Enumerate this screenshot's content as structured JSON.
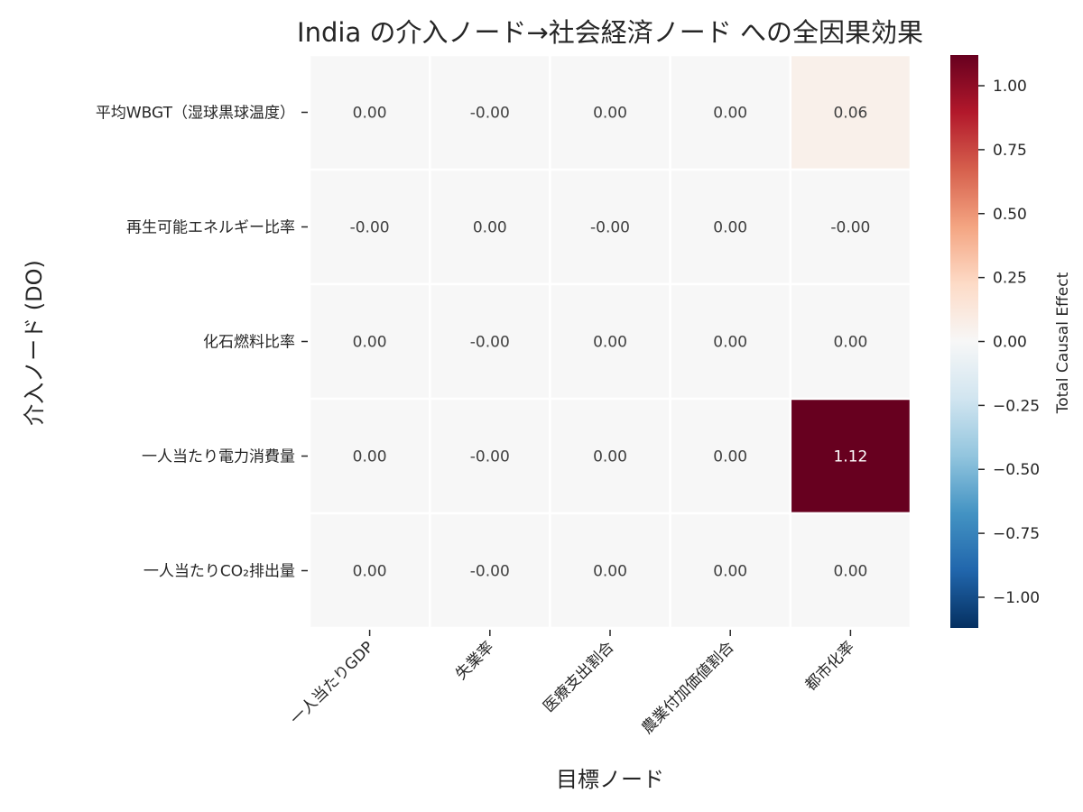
{
  "chart_data": {
    "type": "heatmap",
    "title": "India の介入ノード→社会経済ノード への全因果効果",
    "xlabel": "目標ノード",
    "ylabel": "介入ノード (DO)",
    "rows": [
      "平均WBGT（湿球黒球温度）",
      "再生可能エネルギー比率",
      "化石燃料比率",
      "一人当たり電力消費量",
      "一人当たりCO₂排出量"
    ],
    "columns": [
      "一人当たりGDP",
      "失業率",
      "医療支出割合",
      "農業付加価値割合",
      "都市化率"
    ],
    "values": [
      [
        0.0,
        0.0,
        0.0,
        0.0,
        0.06
      ],
      [
        0.0,
        0.0,
        0.0,
        0.0,
        0.0
      ],
      [
        0.0,
        0.0,
        0.0,
        0.0,
        0.0
      ],
      [
        0.0,
        0.0,
        0.0,
        0.0,
        1.12
      ],
      [
        0.0,
        0.0,
        0.0,
        0.0,
        0.0
      ]
    ],
    "cell_labels": [
      [
        "0.00",
        "-0.00",
        "0.00",
        "0.00",
        "0.06"
      ],
      [
        "-0.00",
        "0.00",
        "-0.00",
        "0.00",
        "-0.00"
      ],
      [
        "0.00",
        "-0.00",
        "0.00",
        "0.00",
        "0.00"
      ],
      [
        "0.00",
        "-0.00",
        "0.00",
        "0.00",
        "1.12"
      ],
      [
        "0.00",
        "-0.00",
        "0.00",
        "0.00",
        "0.00"
      ]
    ],
    "colorbar": {
      "label": "Total Causal Effect",
      "range": [
        -1.12,
        1.12
      ],
      "ticks": [
        1.0,
        0.75,
        0.5,
        0.25,
        0.0,
        -0.25,
        -0.5,
        -0.75,
        -1.0
      ],
      "tick_labels": [
        "1.00",
        "0.75",
        "0.50",
        "0.25",
        "0.00",
        "−0.25",
        "−0.50",
        "−0.75",
        "−1.00"
      ],
      "colormap": "RdBu_r"
    },
    "grid": false
  },
  "colors": {
    "text": "#262626",
    "cell_border": "#ffffff",
    "light_cell_text": "#404040",
    "dark_cell_text": "#ffffff"
  }
}
